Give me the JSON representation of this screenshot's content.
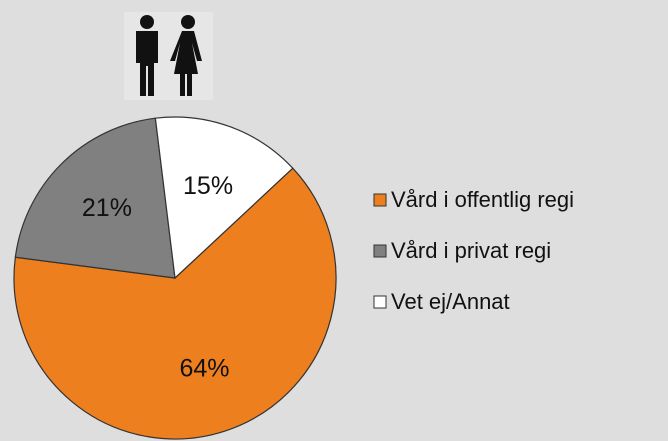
{
  "chart_data": {
    "type": "pie",
    "categories": [
      "Vård i offentlig regi",
      "Vård i privat regi",
      "Vet ej/Annat"
    ],
    "values": [
      64,
      21,
      15
    ],
    "value_labels": [
      "64%",
      "21%",
      "15%"
    ],
    "colors": [
      "#ee7f1e",
      "#808080",
      "#ffffff"
    ]
  }
}
